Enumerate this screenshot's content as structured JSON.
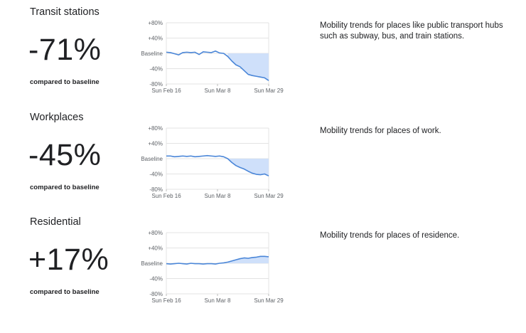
{
  "colors": {
    "line": "#4a86d8",
    "fill": "#cfe0fa",
    "grid": "#e3e3e3",
    "text": "#202124",
    "axis_text": "#5f6368"
  },
  "sections": [
    {
      "title": "Transit stations",
      "value": "-71%",
      "compared": "compared to baseline",
      "description": "Mobility trends for places like public transport hubs such as subway, bus, and train stations."
    },
    {
      "title": "Workplaces",
      "value": "-45%",
      "compared": "compared to baseline",
      "description": "Mobility trends for places of work."
    },
    {
      "title": "Residential",
      "value": "+17%",
      "compared": "compared to baseline",
      "description": "Mobility trends for places of residence."
    }
  ],
  "chart_data": [
    {
      "type": "area",
      "title": "Transit stations",
      "x_tick_labels": [
        "Sun Feb 16",
        "Sun Mar 8",
        "Sun Mar 29"
      ],
      "y_tick_labels": [
        "+80%",
        "+40%",
        "Baseline",
        "-40%",
        "-80%"
      ],
      "y_ticks": [
        80,
        40,
        0,
        -40,
        -80
      ],
      "ylim": [
        -80,
        80
      ],
      "grid": true,
      "series": [
        {
          "values": [
            3,
            2,
            -1,
            -4,
            2,
            3,
            2,
            3,
            -3,
            4,
            3,
            2,
            6,
            1,
            0,
            -8,
            -20,
            -30,
            -35,
            -45,
            -55,
            -58,
            -60,
            -62,
            -64,
            -71
          ]
        }
      ]
    },
    {
      "type": "area",
      "title": "Workplaces",
      "x_tick_labels": [
        "Sun Feb 16",
        "Sun Mar 8",
        "Sun Mar 29"
      ],
      "y_tick_labels": [
        "+80%",
        "+40%",
        "Baseline",
        "-40%",
        "-80%"
      ],
      "y_ticks": [
        80,
        40,
        0,
        -40,
        -80
      ],
      "ylim": [
        -80,
        80
      ],
      "grid": true,
      "series": [
        {
          "values": [
            7,
            7,
            5,
            6,
            7,
            6,
            7,
            5,
            6,
            7,
            8,
            7,
            6,
            7,
            5,
            0,
            -10,
            -18,
            -23,
            -27,
            -33,
            -38,
            -41,
            -42,
            -40,
            -45
          ]
        }
      ]
    },
    {
      "type": "area",
      "title": "Residential",
      "x_tick_labels": [
        "Sun Feb 16",
        "Sun Mar 8",
        "Sun Mar 29"
      ],
      "y_tick_labels": [
        "+80%",
        "+40%",
        "Baseline",
        "-40%",
        "-80%"
      ],
      "y_ticks": [
        80,
        40,
        0,
        -40,
        -80
      ],
      "ylim": [
        -80,
        80
      ],
      "grid": true,
      "series": [
        {
          "values": [
            -1,
            -2,
            -1,
            0,
            -1,
            -2,
            0,
            -1,
            -1,
            -2,
            -1,
            -1,
            -2,
            0,
            1,
            3,
            6,
            9,
            12,
            14,
            13,
            15,
            16,
            18,
            18,
            17
          ]
        }
      ]
    }
  ]
}
